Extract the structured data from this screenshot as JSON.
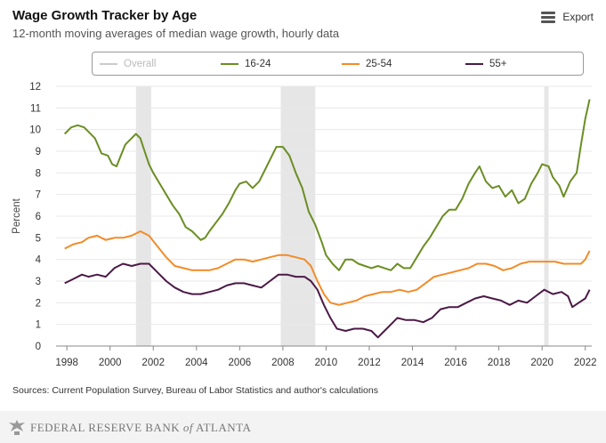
{
  "header": {
    "title": "Wage Growth Tracker by Age",
    "subtitle": "12-month moving averages of median wage growth, hourly data",
    "export_label": "Export"
  },
  "legend": [
    {
      "label": "Overall",
      "color": "#cccccc",
      "visible": false
    },
    {
      "label": "16-24",
      "color": "#6b8e23",
      "visible": true
    },
    {
      "label": "25-54",
      "color": "#f28c28",
      "visible": true
    },
    {
      "label": "55+",
      "color": "#4b1a46",
      "visible": true
    }
  ],
  "footer": {
    "source": "Sources: Current Population Survey, Bureau of Labor Statistics and author's calculations",
    "brand_lettering": "FEDERAL RESERVE BANK of ATLANTA"
  },
  "chart_data": {
    "type": "line",
    "ylabel": "Percent",
    "xlabel": "",
    "ylim": [
      0,
      12
    ],
    "xlim": [
      1997.5,
      2022.3
    ],
    "yticks": [
      0,
      1,
      2,
      3,
      4,
      5,
      6,
      7,
      8,
      9,
      10,
      11,
      12
    ],
    "xticks": [
      "1998",
      "2000",
      "2002",
      "2004",
      "2006",
      "2008",
      "2010",
      "2012",
      "2014",
      "2016",
      "2018",
      "2020",
      "2022"
    ],
    "grid": "horizontal",
    "recessions": [
      [
        2001.2,
        2001.9
      ],
      [
        2007.9,
        2009.5
      ],
      [
        2020.1,
        2020.3
      ]
    ],
    "series": [
      {
        "name": "16-24",
        "color": "#6b8e23",
        "points": [
          [
            1997.9,
            9.8
          ],
          [
            1998.2,
            10.1
          ],
          [
            1998.5,
            10.2
          ],
          [
            1998.8,
            10.1
          ],
          [
            1999.0,
            9.9
          ],
          [
            1999.3,
            9.6
          ],
          [
            1999.6,
            8.9
          ],
          [
            1999.9,
            8.8
          ],
          [
            2000.1,
            8.4
          ],
          [
            2000.3,
            8.3
          ],
          [
            2000.5,
            8.8
          ],
          [
            2000.7,
            9.3
          ],
          [
            2000.9,
            9.5
          ],
          [
            2001.2,
            9.8
          ],
          [
            2001.4,
            9.6
          ],
          [
            2001.6,
            9.0
          ],
          [
            2001.8,
            8.4
          ],
          [
            2002.0,
            8.0
          ],
          [
            2002.3,
            7.5
          ],
          [
            2002.6,
            7.0
          ],
          [
            2002.9,
            6.5
          ],
          [
            2003.2,
            6.1
          ],
          [
            2003.5,
            5.5
          ],
          [
            2003.8,
            5.3
          ],
          [
            2004.0,
            5.1
          ],
          [
            2004.2,
            4.9
          ],
          [
            2004.4,
            5.0
          ],
          [
            2004.6,
            5.3
          ],
          [
            2004.9,
            5.7
          ],
          [
            2005.2,
            6.1
          ],
          [
            2005.5,
            6.6
          ],
          [
            2005.8,
            7.2
          ],
          [
            2006.0,
            7.5
          ],
          [
            2006.3,
            7.6
          ],
          [
            2006.6,
            7.3
          ],
          [
            2006.9,
            7.6
          ],
          [
            2007.2,
            8.2
          ],
          [
            2007.5,
            8.8
          ],
          [
            2007.7,
            9.2
          ],
          [
            2008.0,
            9.2
          ],
          [
            2008.3,
            8.8
          ],
          [
            2008.6,
            8.0
          ],
          [
            2008.9,
            7.3
          ],
          [
            2009.2,
            6.2
          ],
          [
            2009.5,
            5.6
          ],
          [
            2009.8,
            4.8
          ],
          [
            2010.0,
            4.2
          ],
          [
            2010.3,
            3.8
          ],
          [
            2010.6,
            3.5
          ],
          [
            2010.9,
            4.0
          ],
          [
            2011.2,
            4.0
          ],
          [
            2011.5,
            3.8
          ],
          [
            2011.8,
            3.7
          ],
          [
            2012.1,
            3.6
          ],
          [
            2012.4,
            3.7
          ],
          [
            2012.7,
            3.6
          ],
          [
            2013.0,
            3.5
          ],
          [
            2013.3,
            3.8
          ],
          [
            2013.6,
            3.6
          ],
          [
            2013.9,
            3.6
          ],
          [
            2014.2,
            4.1
          ],
          [
            2014.5,
            4.6
          ],
          [
            2014.8,
            5.0
          ],
          [
            2015.1,
            5.5
          ],
          [
            2015.4,
            6.0
          ],
          [
            2015.7,
            6.3
          ],
          [
            2016.0,
            6.3
          ],
          [
            2016.3,
            6.8
          ],
          [
            2016.6,
            7.5
          ],
          [
            2016.9,
            8.0
          ],
          [
            2017.1,
            8.3
          ],
          [
            2017.4,
            7.6
          ],
          [
            2017.7,
            7.3
          ],
          [
            2018.0,
            7.4
          ],
          [
            2018.3,
            6.9
          ],
          [
            2018.6,
            7.2
          ],
          [
            2018.9,
            6.6
          ],
          [
            2019.2,
            6.8
          ],
          [
            2019.5,
            7.5
          ],
          [
            2019.8,
            8.0
          ],
          [
            2020.0,
            8.4
          ],
          [
            2020.3,
            8.3
          ],
          [
            2020.5,
            7.8
          ],
          [
            2020.8,
            7.4
          ],
          [
            2021.0,
            6.9
          ],
          [
            2021.3,
            7.6
          ],
          [
            2021.6,
            8.0
          ],
          [
            2021.8,
            9.3
          ],
          [
            2022.0,
            10.5
          ],
          [
            2022.2,
            11.4
          ]
        ]
      },
      {
        "name": "25-54",
        "color": "#f28c28",
        "points": [
          [
            1997.9,
            4.5
          ],
          [
            1998.3,
            4.7
          ],
          [
            1998.7,
            4.8
          ],
          [
            1999.0,
            5.0
          ],
          [
            1999.4,
            5.1
          ],
          [
            1999.8,
            4.9
          ],
          [
            2000.2,
            5.0
          ],
          [
            2000.6,
            5.0
          ],
          [
            2001.0,
            5.1
          ],
          [
            2001.4,
            5.3
          ],
          [
            2001.8,
            5.1
          ],
          [
            2002.2,
            4.6
          ],
          [
            2002.6,
            4.1
          ],
          [
            2003.0,
            3.7
          ],
          [
            2003.4,
            3.6
          ],
          [
            2003.8,
            3.5
          ],
          [
            2004.2,
            3.5
          ],
          [
            2004.6,
            3.5
          ],
          [
            2005.0,
            3.6
          ],
          [
            2005.4,
            3.8
          ],
          [
            2005.8,
            4.0
          ],
          [
            2006.2,
            4.0
          ],
          [
            2006.6,
            3.9
          ],
          [
            2007.0,
            4.0
          ],
          [
            2007.4,
            4.1
          ],
          [
            2007.8,
            4.2
          ],
          [
            2008.2,
            4.2
          ],
          [
            2008.6,
            4.1
          ],
          [
            2009.0,
            4.0
          ],
          [
            2009.3,
            3.7
          ],
          [
            2009.6,
            3.0
          ],
          [
            2009.9,
            2.4
          ],
          [
            2010.2,
            2.0
          ],
          [
            2010.6,
            1.9
          ],
          [
            2011.0,
            2.0
          ],
          [
            2011.4,
            2.1
          ],
          [
            2011.8,
            2.3
          ],
          [
            2012.2,
            2.4
          ],
          [
            2012.6,
            2.5
          ],
          [
            2013.0,
            2.5
          ],
          [
            2013.4,
            2.6
          ],
          [
            2013.8,
            2.5
          ],
          [
            2014.2,
            2.6
          ],
          [
            2014.6,
            2.9
          ],
          [
            2015.0,
            3.2
          ],
          [
            2015.4,
            3.3
          ],
          [
            2015.8,
            3.4
          ],
          [
            2016.2,
            3.5
          ],
          [
            2016.6,
            3.6
          ],
          [
            2017.0,
            3.8
          ],
          [
            2017.4,
            3.8
          ],
          [
            2017.8,
            3.7
          ],
          [
            2018.2,
            3.5
          ],
          [
            2018.6,
            3.6
          ],
          [
            2019.0,
            3.8
          ],
          [
            2019.4,
            3.9
          ],
          [
            2019.8,
            3.9
          ],
          [
            2020.2,
            3.9
          ],
          [
            2020.6,
            3.9
          ],
          [
            2021.0,
            3.8
          ],
          [
            2021.4,
            3.8
          ],
          [
            2021.8,
            3.8
          ],
          [
            2022.0,
            4.0
          ],
          [
            2022.2,
            4.4
          ]
        ]
      },
      {
        "name": "55+",
        "color": "#4b1a46",
        "points": [
          [
            1997.9,
            2.9
          ],
          [
            1998.3,
            3.1
          ],
          [
            1998.7,
            3.3
          ],
          [
            1999.0,
            3.2
          ],
          [
            1999.4,
            3.3
          ],
          [
            1999.8,
            3.2
          ],
          [
            2000.2,
            3.6
          ],
          [
            2000.6,
            3.8
          ],
          [
            2001.0,
            3.7
          ],
          [
            2001.4,
            3.8
          ],
          [
            2001.8,
            3.8
          ],
          [
            2002.2,
            3.4
          ],
          [
            2002.6,
            3.0
          ],
          [
            2003.0,
            2.7
          ],
          [
            2003.4,
            2.5
          ],
          [
            2003.8,
            2.4
          ],
          [
            2004.2,
            2.4
          ],
          [
            2004.6,
            2.5
          ],
          [
            2005.0,
            2.6
          ],
          [
            2005.4,
            2.8
          ],
          [
            2005.8,
            2.9
          ],
          [
            2006.2,
            2.9
          ],
          [
            2006.6,
            2.8
          ],
          [
            2007.0,
            2.7
          ],
          [
            2007.4,
            3.0
          ],
          [
            2007.8,
            3.3
          ],
          [
            2008.2,
            3.3
          ],
          [
            2008.6,
            3.2
          ],
          [
            2009.0,
            3.2
          ],
          [
            2009.3,
            3.0
          ],
          [
            2009.6,
            2.6
          ],
          [
            2009.9,
            1.9
          ],
          [
            2010.2,
            1.3
          ],
          [
            2010.5,
            0.8
          ],
          [
            2010.9,
            0.7
          ],
          [
            2011.3,
            0.8
          ],
          [
            2011.7,
            0.8
          ],
          [
            2012.1,
            0.7
          ],
          [
            2012.4,
            0.4
          ],
          [
            2012.7,
            0.7
          ],
          [
            2013.0,
            1.0
          ],
          [
            2013.3,
            1.3
          ],
          [
            2013.7,
            1.2
          ],
          [
            2014.1,
            1.2
          ],
          [
            2014.5,
            1.1
          ],
          [
            2014.9,
            1.3
          ],
          [
            2015.3,
            1.7
          ],
          [
            2015.7,
            1.8
          ],
          [
            2016.1,
            1.8
          ],
          [
            2016.5,
            2.0
          ],
          [
            2016.9,
            2.2
          ],
          [
            2017.3,
            2.3
          ],
          [
            2017.7,
            2.2
          ],
          [
            2018.1,
            2.1
          ],
          [
            2018.5,
            1.9
          ],
          [
            2018.9,
            2.1
          ],
          [
            2019.3,
            2.0
          ],
          [
            2019.7,
            2.3
          ],
          [
            2020.1,
            2.6
          ],
          [
            2020.5,
            2.4
          ],
          [
            2020.9,
            2.5
          ],
          [
            2021.2,
            2.3
          ],
          [
            2021.4,
            1.8
          ],
          [
            2021.7,
            2.0
          ],
          [
            2022.0,
            2.2
          ],
          [
            2022.2,
            2.6
          ]
        ]
      }
    ]
  }
}
